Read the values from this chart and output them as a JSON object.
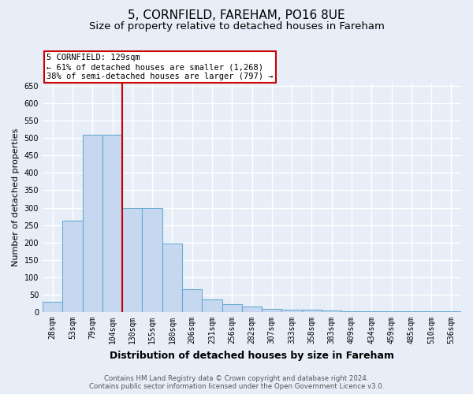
{
  "title": "5, CORNFIELD, FAREHAM, PO16 8UE",
  "subtitle": "Size of property relative to detached houses in Fareham",
  "xlabel": "Distribution of detached houses by size in Fareham",
  "ylabel": "Number of detached properties",
  "categories": [
    "28sqm",
    "53sqm",
    "79sqm",
    "104sqm",
    "130sqm",
    "155sqm",
    "180sqm",
    "206sqm",
    "231sqm",
    "256sqm",
    "282sqm",
    "307sqm",
    "333sqm",
    "358sqm",
    "383sqm",
    "409sqm",
    "434sqm",
    "459sqm",
    "485sqm",
    "510sqm",
    "536sqm"
  ],
  "values": [
    30,
    262,
    510,
    510,
    300,
    300,
    197,
    65,
    37,
    22,
    15,
    9,
    8,
    6,
    5,
    2,
    2,
    2,
    2,
    2,
    2
  ],
  "bar_color": "#c5d8f0",
  "bar_edgecolor": "#6aaad4",
  "vline_x_index": 3.5,
  "annotation_label": "5 CORNFIELD: 129sqm",
  "annotation_line1": "← 61% of detached houses are smaller (1,268)",
  "annotation_line2": "38% of semi-detached houses are larger (797) →",
  "annotation_box_facecolor": "#ffffff",
  "annotation_box_edgecolor": "#cc0000",
  "vline_color": "#cc0000",
  "ylim": [
    0,
    660
  ],
  "yticks": [
    0,
    50,
    100,
    150,
    200,
    250,
    300,
    350,
    400,
    450,
    500,
    550,
    600,
    650
  ],
  "footer1": "Contains HM Land Registry data © Crown copyright and database right 2024.",
  "footer2": "Contains public sector information licensed under the Open Government Licence v3.0.",
  "background_color": "#e8eef8",
  "grid_color": "#ffffff",
  "title_fontsize": 11,
  "subtitle_fontsize": 9.5,
  "tick_fontsize": 7,
  "ylabel_fontsize": 8,
  "xlabel_fontsize": 9
}
